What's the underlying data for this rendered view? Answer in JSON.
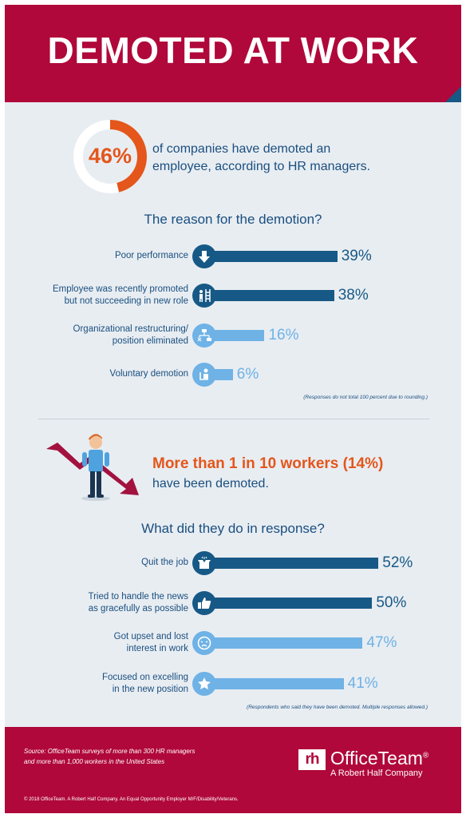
{
  "title": "DEMOTED AT WORK",
  "stat": {
    "value": "46%",
    "fraction": 0.46,
    "text_line1": "of companies have demoted an",
    "text_line2": "employee, according to HR managers."
  },
  "chart_data": [
    {
      "type": "bar",
      "title": "The reason for the demotion?",
      "categories": [
        "Poor performance",
        "Employee was recently promoted but not succeeding in new role",
        "Organizational restructuring/ position eliminated",
        "Voluntary demotion"
      ],
      "values": [
        39,
        38,
        16,
        6
      ],
      "value_labels": [
        "39%",
        "38%",
        "16%",
        "6%"
      ],
      "note": "(Responses do not total 100 percent due to rounding.)"
    },
    {
      "type": "bar",
      "title": "What did they do in response?",
      "categories": [
        "Quit the job",
        "Tried to handle the news as gracefully as possible",
        "Got upset and lost interest in work",
        "Focused on excelling in the new position"
      ],
      "values": [
        52,
        50,
        47,
        41
      ],
      "value_labels": [
        "52%",
        "50%",
        "47%",
        "41%"
      ],
      "note": "(Respondents who said they have been demoted. Multiple responses allowed.)"
    }
  ],
  "reasons": {
    "labels": [
      {
        "line1": "Poor performance",
        "line2": ""
      },
      {
        "line1": "Employee was recently promoted",
        "line2": "but not succeeding in new role"
      },
      {
        "line1": "Organizational restructuring/",
        "line2": "position eliminated"
      },
      {
        "line1": "Voluntary demotion",
        "line2": ""
      }
    ],
    "icons": [
      "down-arrow-icon",
      "ladder-person-icon",
      "org-chart-icon",
      "person-chair-icon"
    ]
  },
  "middle": {
    "headline": "More than 1 in 10 workers (14%)",
    "subline": "have been demoted."
  },
  "responses": {
    "labels": [
      {
        "line1": "Quit the job",
        "line2": ""
      },
      {
        "line1": "Tried to handle the news",
        "line2": "as gracefully as possible"
      },
      {
        "line1": "Got upset and lost",
        "line2": "interest in work"
      },
      {
        "line1": "Focused on excelling",
        "line2": "in the new position"
      }
    ],
    "icons": [
      "box-icon",
      "thumbs-up-icon",
      "upset-face-icon",
      "star-icon"
    ]
  },
  "footer": {
    "source_line1": "Source: OfficeTeam surveys of more than 300 HR managers",
    "source_line2": "and more than 1,000 workers in the United States",
    "copyright": "© 2018 OfficeTeam. A Robert Half Company. An Equal Opportunity Employer M/F/Disability/Veterans.",
    "logo_mark": "rh",
    "logo_name": "OfficeTeam",
    "logo_reg": "®",
    "logo_tagline": "A Robert Half Company"
  },
  "colors": {
    "brand_red": "#b0083a",
    "dark_blue": "#175986",
    "light_blue": "#6eb2e6",
    "orange": "#e4561b",
    "text_blue": "#1a4f7f"
  }
}
